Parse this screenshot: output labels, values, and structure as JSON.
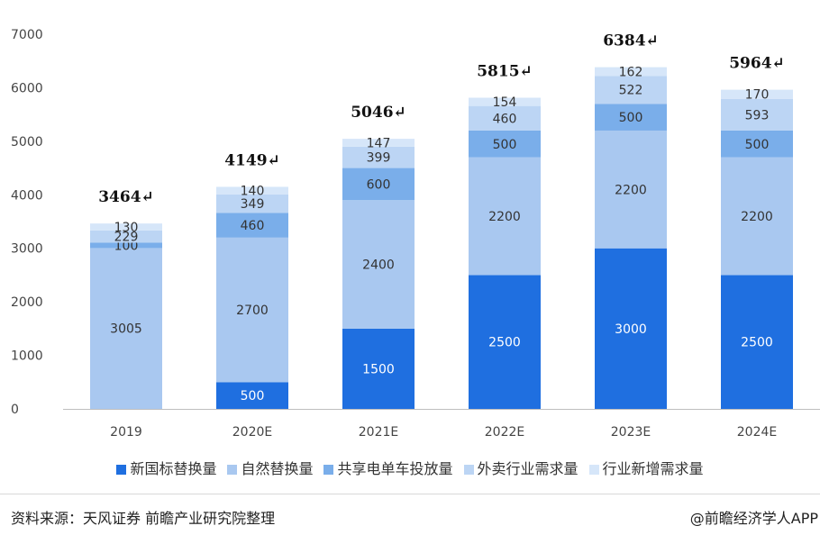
{
  "chart_data": {
    "type": "bar",
    "stacked": true,
    "categories": [
      "2019",
      "2020E",
      "2021E",
      "2022E",
      "2023E",
      "2024E"
    ],
    "series": [
      {
        "name": "新国标替换量",
        "color": "#1f6fe0",
        "values": [
          0,
          500,
          1500,
          2500,
          3000,
          2500
        ]
      },
      {
        "name": "自然替换量",
        "color": "#a9c8f0",
        "values": [
          3005,
          2700,
          2400,
          2200,
          2200,
          2200
        ]
      },
      {
        "name": "共享电单车投放量",
        "color": "#7aaeea",
        "values": [
          100,
          460,
          600,
          500,
          500,
          500
        ]
      },
      {
        "name": "外卖行业需求量",
        "color": "#bcd5f4",
        "values": [
          229,
          349,
          399,
          460,
          522,
          593
        ]
      },
      {
        "name": "行业新增需求量",
        "color": "#d6e6f9",
        "values": [
          130,
          140,
          147,
          154,
          162,
          170
        ]
      }
    ],
    "segment_labels": [
      [
        "",
        "3005",
        "100",
        "229",
        "130"
      ],
      [
        "500",
        "2700",
        "460",
        "349",
        "140"
      ],
      [
        "1500",
        "2400",
        "600",
        "399",
        "147"
      ],
      [
        "2500",
        "2200",
        "500",
        "460",
        "154"
      ],
      [
        "3000",
        "2200",
        "500",
        "522",
        "162"
      ],
      [
        "2500",
        "2200",
        "500",
        "593",
        "170"
      ]
    ],
    "totals": [
      "3464↵",
      "4149↵",
      "5046↵",
      "5815↵",
      "6384↵",
      "5964↵"
    ],
    "y_ticks": [
      "0",
      "1000",
      "2000",
      "3000",
      "4000",
      "5000",
      "6000",
      "7000"
    ],
    "ylim": [
      0,
      7000
    ],
    "grid": false,
    "legend_position": "bottom"
  },
  "footer": {
    "source": "资料来源：天风证券 前瞻产业研究院整理",
    "brand": "@前瞻经济学人APP"
  }
}
